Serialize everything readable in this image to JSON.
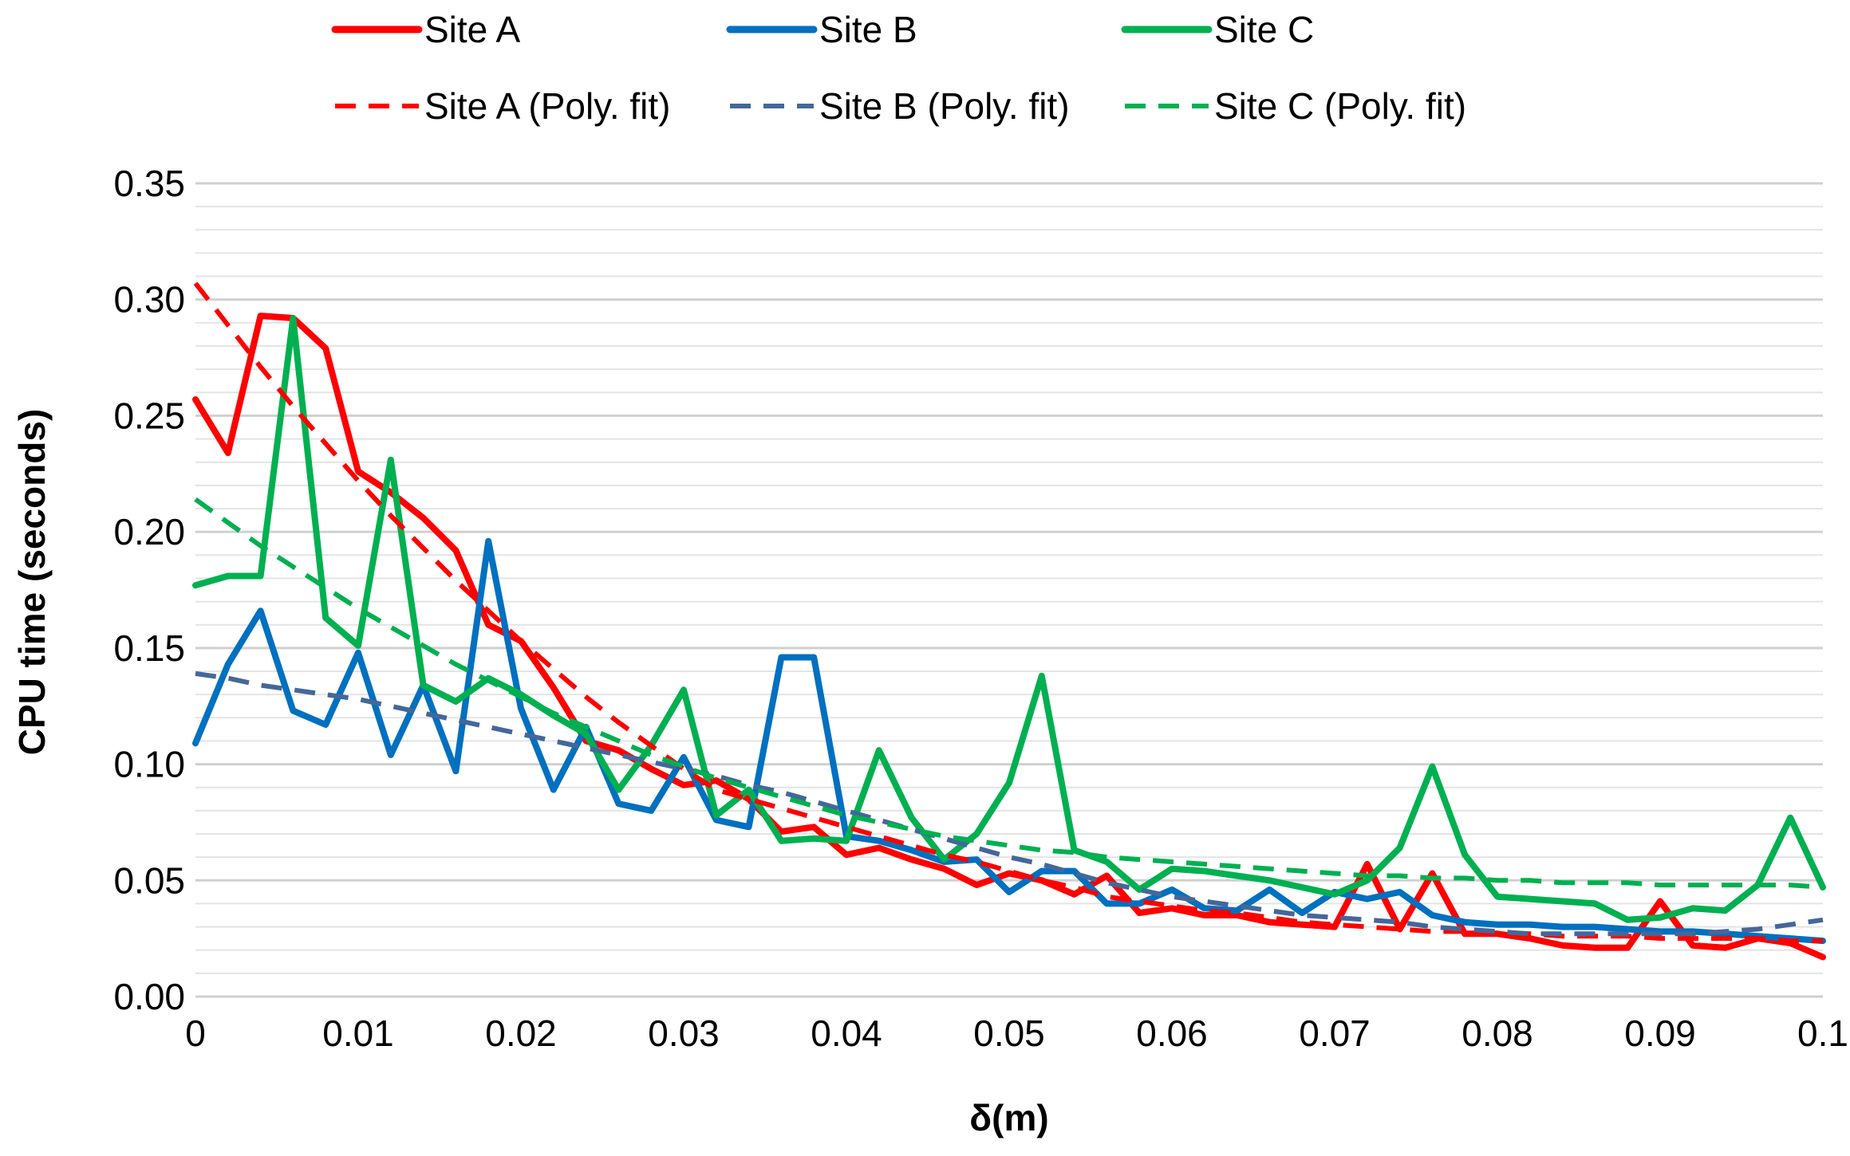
{
  "chart_data": {
    "type": "line",
    "title": "",
    "xlabel": "δ(m)",
    "ylabel": "CPU time (seconds)",
    "xlim": [
      0,
      0.1
    ],
    "ylim": [
      0,
      0.35
    ],
    "x_ticks": [
      "0",
      "0.01",
      "0.02",
      "0.03",
      "0.04",
      "0.05",
      "0.06",
      "0.07",
      "0.08",
      "0.09",
      "0.1"
    ],
    "y_ticks": [
      "0.35",
      "0.30",
      "0.25",
      "0.20",
      "0.15",
      "0.10",
      "0.05",
      "0.00"
    ],
    "minor_grid_step": 0.01,
    "legend_position": "top",
    "x": [
      0,
      0.002,
      0.004,
      0.006,
      0.008,
      0.01,
      0.012,
      0.014,
      0.016,
      0.018,
      0.02,
      0.022,
      0.024,
      0.026,
      0.028,
      0.03,
      0.032,
      0.034,
      0.036,
      0.038,
      0.04,
      0.042,
      0.044,
      0.046,
      0.048,
      0.05,
      0.052,
      0.054,
      0.056,
      0.058,
      0.06,
      0.062,
      0.064,
      0.066,
      0.068,
      0.07,
      0.072,
      0.074,
      0.076,
      0.078,
      0.08,
      0.082,
      0.084,
      0.086,
      0.088,
      0.09,
      0.092,
      0.094,
      0.096,
      0.098,
      0.1
    ],
    "series": [
      {
        "name": "Site A",
        "color": "#ff0000",
        "style": "solid",
        "values": [
          0.257,
          0.234,
          0.293,
          0.292,
          0.279,
          0.226,
          0.217,
          0.206,
          0.192,
          0.16,
          0.153,
          0.133,
          0.11,
          0.106,
          0.098,
          0.091,
          0.093,
          0.085,
          0.071,
          0.073,
          0.061,
          0.064,
          0.059,
          0.055,
          0.048,
          0.053,
          0.05,
          0.044,
          0.052,
          0.036,
          0.038,
          0.035,
          0.035,
          0.032,
          0.031,
          0.03,
          0.057,
          0.029,
          0.053,
          0.027,
          0.027,
          0.025,
          0.022,
          0.021,
          0.021,
          0.041,
          0.022,
          0.021,
          0.025,
          0.023,
          0.017
        ]
      },
      {
        "name": "Site B",
        "color": "#0070c0",
        "style": "solid",
        "values": [
          0.109,
          0.143,
          0.166,
          0.123,
          0.117,
          0.148,
          0.104,
          0.134,
          0.097,
          0.196,
          0.124,
          0.089,
          0.116,
          0.083,
          0.08,
          0.103,
          0.076,
          0.073,
          0.146,
          0.146,
          0.069,
          0.067,
          0.063,
          0.058,
          0.059,
          0.045,
          0.054,
          0.054,
          0.04,
          0.04,
          0.046,
          0.038,
          0.037,
          0.046,
          0.036,
          0.045,
          0.042,
          0.045,
          0.035,
          0.032,
          0.031,
          0.031,
          0.03,
          0.03,
          0.029,
          0.028,
          0.028,
          0.027,
          0.026,
          0.025,
          0.024
        ]
      },
      {
        "name": "Site C",
        "color": "#00b050",
        "style": "solid",
        "values": [
          0.177,
          0.181,
          0.181,
          0.292,
          0.163,
          0.151,
          0.231,
          0.134,
          0.127,
          0.137,
          0.13,
          0.121,
          0.113,
          0.089,
          0.108,
          0.132,
          0.078,
          0.089,
          0.067,
          0.068,
          0.067,
          0.106,
          0.077,
          0.059,
          0.07,
          0.092,
          0.138,
          0.063,
          0.058,
          0.046,
          0.055,
          0.054,
          0.052,
          0.05,
          0.047,
          0.044,
          0.05,
          0.064,
          0.099,
          0.061,
          0.043,
          0.042,
          0.041,
          0.04,
          0.033,
          0.034,
          0.038,
          0.037,
          0.048,
          0.077,
          0.047
        ]
      },
      {
        "name": "Site A (Poly. fit)",
        "color": "#ff0000",
        "style": "dashed",
        "values": [
          0.307,
          0.289,
          0.271,
          0.254,
          0.238,
          0.222,
          0.207,
          0.193,
          0.179,
          0.166,
          0.153,
          0.141,
          0.129,
          0.118,
          0.108,
          0.098,
          0.089,
          0.085,
          0.081,
          0.077,
          0.073,
          0.069,
          0.065,
          0.061,
          0.058,
          0.054,
          0.05,
          0.047,
          0.043,
          0.041,
          0.039,
          0.037,
          0.036,
          0.034,
          0.032,
          0.031,
          0.03,
          0.029,
          0.028,
          0.028,
          0.027,
          0.027,
          0.026,
          0.026,
          0.026,
          0.025,
          0.025,
          0.025,
          0.025,
          0.024,
          0.024
        ]
      },
      {
        "name": "Site B (Poly. fit)",
        "color": "#44679a",
        "style": "dashed",
        "values": [
          0.139,
          0.137,
          0.134,
          0.132,
          0.13,
          0.128,
          0.125,
          0.122,
          0.119,
          0.116,
          0.113,
          0.11,
          0.107,
          0.104,
          0.101,
          0.098,
          0.095,
          0.091,
          0.088,
          0.084,
          0.08,
          0.076,
          0.072,
          0.068,
          0.064,
          0.06,
          0.057,
          0.053,
          0.049,
          0.046,
          0.043,
          0.041,
          0.039,
          0.037,
          0.035,
          0.034,
          0.033,
          0.032,
          0.03,
          0.029,
          0.028,
          0.027,
          0.027,
          0.027,
          0.027,
          0.027,
          0.027,
          0.028,
          0.029,
          0.031,
          0.033
        ]
      },
      {
        "name": "Site C (Poly. fit)",
        "color": "#00b050",
        "style": "dashed",
        "values": [
          0.214,
          0.204,
          0.194,
          0.185,
          0.176,
          0.167,
          0.159,
          0.151,
          0.143,
          0.136,
          0.129,
          0.122,
          0.116,
          0.11,
          0.104,
          0.099,
          0.094,
          0.09,
          0.086,
          0.082,
          0.078,
          0.075,
          0.072,
          0.069,
          0.067,
          0.065,
          0.063,
          0.062,
          0.06,
          0.059,
          0.058,
          0.057,
          0.056,
          0.055,
          0.054,
          0.053,
          0.052,
          0.052,
          0.051,
          0.051,
          0.05,
          0.05,
          0.049,
          0.049,
          0.049,
          0.048,
          0.048,
          0.048,
          0.048,
          0.048,
          0.047
        ]
      }
    ]
  }
}
